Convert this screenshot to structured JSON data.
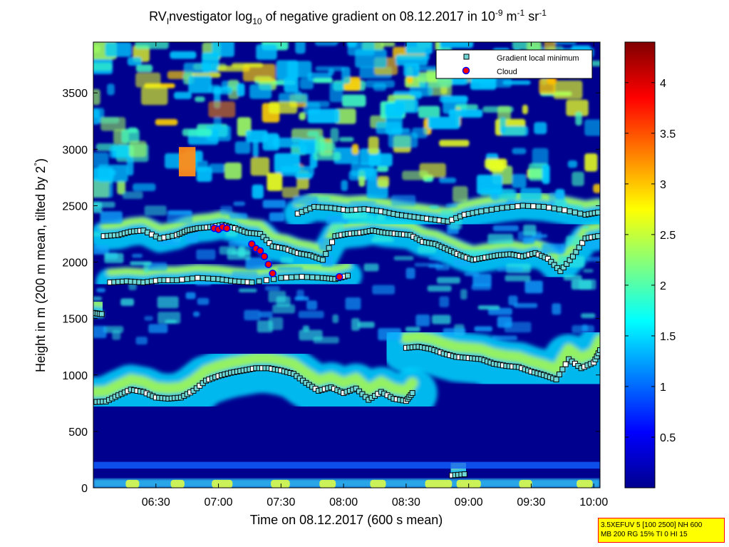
{
  "title": {
    "prefix": "RV",
    "sub_instrument": "I",
    "main1": "nvestigator log",
    "log_base": "10",
    "main2": " of negative gradient on 08.12.2017 in 10",
    "exp1": "-9",
    "unit_m": " m",
    "exp2": "-1",
    "unit_sr": " sr",
    "exp3": "-1"
  },
  "axes": {
    "xlabel": "Time on 08.12.2017 (600 s mean)",
    "ylabel_main": "Height in m (200 m mean, tilted by 2",
    "ylabel_degree": "°",
    "ylabel_close": ")"
  },
  "legend": {
    "minimum_label": "Gradient local minimum",
    "cloud_label": "Cloud"
  },
  "settings_box": {
    "line1": "3.5XEFUV 5 [100 2500] NH 600",
    "line2": "MB 200 RG 15% TI 0 HI 15"
  },
  "colors": {
    "background_low": "#00008f",
    "marker_minimum": "#6fd6d6",
    "marker_cloud": "#ff0000",
    "marker_cloud_edge": "#0000ff",
    "settings_box_fill": "#ffff00",
    "settings_box_border": "#ff0000"
  },
  "chart_data": {
    "type": "heatmap",
    "colormap": "jet",
    "xlabel": "Time on 08.12.2017 (600 s mean)",
    "xlim_minutes": [
      360,
      603
    ],
    "x_ticks": [
      {
        "minutes": 390,
        "label": "06:30"
      },
      {
        "minutes": 420,
        "label": "07:00"
      },
      {
        "minutes": 450,
        "label": "07:30"
      },
      {
        "minutes": 480,
        "label": "08:00"
      },
      {
        "minutes": 510,
        "label": "08:30"
      },
      {
        "minutes": 540,
        "label": "09:00"
      },
      {
        "minutes": 570,
        "label": "09:30"
      },
      {
        "minutes": 600,
        "label": "10:00"
      }
    ],
    "ylim": [
      0,
      3950
    ],
    "y_ticks": [
      0,
      500,
      1000,
      1500,
      2000,
      2500,
      3000,
      3500
    ],
    "colorbar_range": [
      0,
      4.4
    ],
    "colorbar_ticks": [
      0.5,
      1,
      1.5,
      2,
      2.5,
      3,
      3.5,
      4
    ],
    "gradient_minimum_layers": [
      {
        "t": [
          360,
          366,
          372,
          378,
          384,
          390,
          396,
          402,
          408,
          414,
          420,
          426,
          432,
          438,
          444,
          450,
          456,
          462,
          468,
          474,
          480,
          486,
          492,
          498,
          504,
          510,
          513
        ],
        "h": [
          760,
          765,
          820,
          870,
          850,
          800,
          790,
          800,
          860,
          950,
          990,
          1020,
          1040,
          1060,
          1060,
          1040,
          1010,
          930,
          860,
          890,
          840,
          880,
          780,
          850,
          790,
          770,
          840
        ]
      },
      {
        "t": [
          510,
          516,
          522,
          528,
          534,
          540,
          546,
          552,
          558,
          564,
          570,
          576,
          582,
          588,
          594,
          600,
          603
        ],
        "h": [
          1240,
          1250,
          1230,
          1190,
          1160,
          1150,
          1140,
          1100,
          1080,
          1070,
          1030,
          1000,
          960,
          1140,
          1060,
          1110,
          1220
        ]
      },
      {
        "t": [
          365,
          372,
          378,
          384,
          392,
          400,
          405,
          410,
          416,
          422,
          428,
          434,
          440,
          446,
          452,
          458,
          464,
          470,
          476,
          482,
          488,
          494,
          500,
          506,
          512,
          518,
          524,
          530,
          536,
          542,
          548,
          554,
          560,
          566,
          572,
          578,
          584,
          590,
          596,
          602
        ],
        "h": [
          2230,
          2240,
          2270,
          2280,
          2210,
          2240,
          2280,
          2300,
          2310,
          2330,
          2300,
          2260,
          2250,
          2140,
          2120,
          2080,
          2060,
          2020,
          2230,
          2250,
          2260,
          2280,
          2260,
          2250,
          2240,
          2180,
          2160,
          2110,
          2060,
          2020,
          2040,
          2060,
          2070,
          2050,
          2080,
          2030,
          1920,
          2050,
          2210,
          2230
        ]
      },
      {
        "t": [
          368,
          376,
          384,
          392,
          400,
          410,
          420,
          428,
          436,
          450,
          460,
          470,
          476,
          482
        ],
        "h": [
          1820,
          1830,
          1820,
          1840,
          1840,
          1860,
          1850,
          1830,
          1820,
          1860,
          1870,
          1860,
          1850,
          1880
        ]
      },
      {
        "t": [
          458,
          466,
          474,
          482,
          490,
          498,
          506,
          514,
          522,
          530,
          538,
          546,
          556,
          566,
          576,
          586,
          596,
          602
        ],
        "h": [
          2430,
          2490,
          2480,
          2460,
          2470,
          2450,
          2420,
          2400,
          2380,
          2360,
          2420,
          2450,
          2480,
          2500,
          2490,
          2460,
          2420,
          2440
        ]
      },
      {
        "t": [
          360,
          364
        ],
        "h": [
          1550,
          1540
        ]
      },
      {
        "t": [
          532,
          538
        ],
        "h": [
          110,
          120
        ]
      }
    ],
    "cloud_points": [
      {
        "t": 418,
        "h": 2300
      },
      {
        "t": 420,
        "h": 2290
      },
      {
        "t": 422,
        "h": 2310
      },
      {
        "t": 424,
        "h": 2300
      },
      {
        "t": 436,
        "h": 2160
      },
      {
        "t": 438,
        "h": 2120
      },
      {
        "t": 440,
        "h": 2100
      },
      {
        "t": 442,
        "h": 2050
      },
      {
        "t": 444,
        "h": 1980
      },
      {
        "t": 446,
        "h": 1900
      },
      {
        "t": 478,
        "h": 1870
      }
    ]
  }
}
